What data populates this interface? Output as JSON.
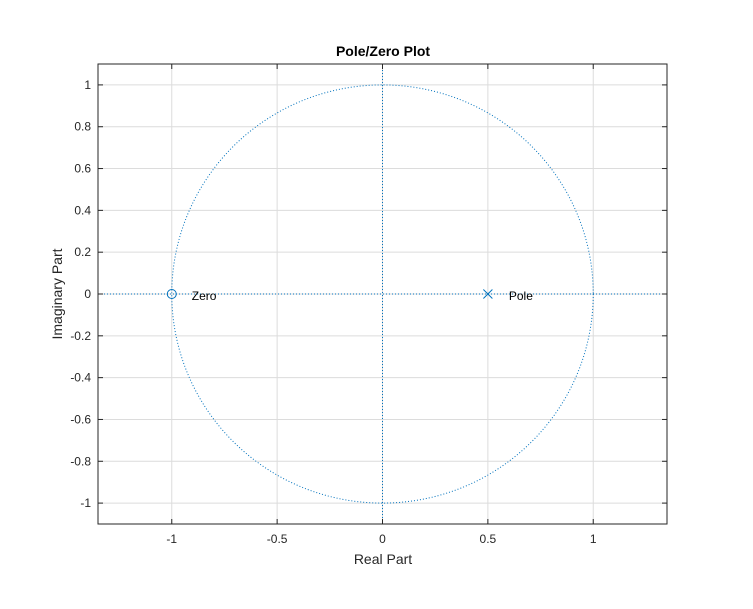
{
  "chart_data": {
    "type": "scatter",
    "title": "Pole/Zero Plot",
    "xlabel": "Real Part",
    "ylabel": "Imaginary Part",
    "xlim": [
      -1.35,
      1.35
    ],
    "ylim": [
      -1.1,
      1.1
    ],
    "xticks": [
      -1,
      -0.5,
      0,
      0.5,
      1
    ],
    "xtick_labels": [
      "-1",
      "-0.5",
      "0",
      "0.5",
      "1"
    ],
    "yticks": [
      1,
      0.8,
      0.6,
      0.4,
      0.2,
      0,
      -0.2,
      -0.4,
      -0.6,
      -0.8,
      -1
    ],
    "ytick_labels": [
      "1",
      "0.8",
      "0.6",
      "0.4",
      "0.2",
      "0",
      "-0.2",
      "-0.4",
      "-0.6",
      "-0.8",
      "-1"
    ],
    "grid": true,
    "unit_circle": {
      "radius": 1,
      "style": "dotted"
    },
    "zeros": [
      {
        "x": -1,
        "y": 0,
        "marker": "o",
        "label": "Zero"
      }
    ],
    "poles": [
      {
        "x": 0.5,
        "y": 0,
        "marker": "x",
        "label": "Pole"
      }
    ],
    "colors": {
      "series": "#0072BD",
      "grid": "#dcdcdc",
      "axes": "#262626"
    }
  }
}
